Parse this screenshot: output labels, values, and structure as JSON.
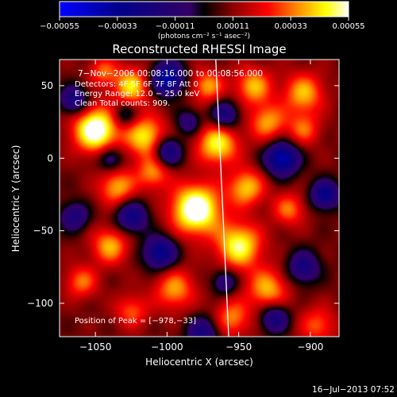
{
  "chart_data": {
    "type": "heatmap",
    "title": "Reconstructed RHESSI Image",
    "xlabel": "Heliocentric X (arcsec)",
    "ylabel": "Heliocentric Y (arcsec)",
    "xlim": [
      -1075,
      -880
    ],
    "ylim": [
      -123,
      68
    ],
    "xticks": [
      -1050,
      -1000,
      -950,
      -900
    ],
    "xtick_labels": [
      "−1050",
      "−1000",
      "−950",
      "−900"
    ],
    "yticks": [
      50,
      0,
      -50,
      -100
    ],
    "ytick_labels": [
      "50",
      "0",
      "−50",
      "−100"
    ],
    "colorbar": {
      "min": -0.00055,
      "max": 0.00055,
      "ticks": [
        -0.00055,
        -0.00033,
        -0.00011,
        0.00011,
        0.00033,
        0.00055
      ],
      "tick_labels": [
        "−0.00055",
        "−0.00033",
        "−0.00011",
        "0.00011",
        "0.00033",
        "0.00055"
      ],
      "units": "(photons cm⁻² s⁻¹ asec⁻²)"
    },
    "info_lines": [
      "7−Nov−2006 00:08:16.000 to 00:08:56.000",
      "Detectors: 4F 5F 6F 7F 8F  Att 0",
      "Energy Range: 12.0 − 25.0 keV",
      "Clean     Total counts: 909."
    ],
    "peak_label": "Position of Peak = [−978,−33]",
    "peak": [
      -978,
      -33
    ],
    "limb_line": [
      [
        -966,
        68
      ],
      [
        -957,
        -123
      ]
    ],
    "blobs": [
      [
        -1050,
        20,
        11,
        2.4
      ],
      [
        -1025,
        50,
        9,
        1.6
      ],
      [
        -1015,
        15,
        10,
        1.7
      ],
      [
        -1035,
        -20,
        9,
        1.4
      ],
      [
        -1010,
        -10,
        8,
        1.2
      ],
      [
        -980,
        -35,
        12,
        2.5
      ],
      [
        -965,
        10,
        10,
        1.8
      ],
      [
        -972,
        50,
        8,
        1.3
      ],
      [
        -940,
        50,
        9,
        1.4
      ],
      [
        -930,
        25,
        9,
        1.3
      ],
      [
        -905,
        45,
        10,
        1.4
      ],
      [
        -905,
        20,
        8,
        1.0
      ],
      [
        -945,
        -20,
        9,
        1.5
      ],
      [
        -950,
        -60,
        11,
        1.9
      ],
      [
        -930,
        -90,
        10,
        1.4
      ],
      [
        -995,
        -90,
        10,
        1.3
      ],
      [
        -1040,
        -60,
        9,
        1.4
      ],
      [
        -1060,
        -85,
        8,
        1.1
      ],
      [
        -1025,
        -105,
        8,
        1.0
      ],
      [
        -955,
        -110,
        9,
        1.2
      ],
      [
        -915,
        -35,
        8,
        1.1
      ],
      [
        -895,
        -115,
        9,
        1.0
      ],
      [
        -1045,
        60,
        7,
        1.0
      ],
      [
        -1000,
        55,
        8,
        -2.2
      ],
      [
        -1065,
        40,
        7,
        -1.5
      ],
      [
        -1000,
        5,
        7,
        -1.7
      ],
      [
        -1025,
        -40,
        8,
        -1.6
      ],
      [
        -960,
        30,
        7,
        -1.5
      ],
      [
        -920,
        0,
        8,
        -2.3
      ],
      [
        -890,
        -25,
        7,
        -1.8
      ],
      [
        -1005,
        -65,
        8,
        -1.9
      ],
      [
        -905,
        -75,
        8,
        -1.4
      ],
      [
        -975,
        -120,
        8,
        -1.4
      ],
      [
        -1040,
        0,
        6,
        -1.2
      ],
      [
        -985,
        25,
        6,
        -1.1
      ],
      [
        -925,
        -110,
        7,
        -1.5
      ],
      [
        -960,
        -85,
        6,
        -1.2
      ],
      [
        -1065,
        -40,
        7,
        -1.3
      ],
      [
        -1030,
        30,
        6,
        -1.0
      ]
    ],
    "timestamp": "16−Jul−2013 07:52"
  }
}
